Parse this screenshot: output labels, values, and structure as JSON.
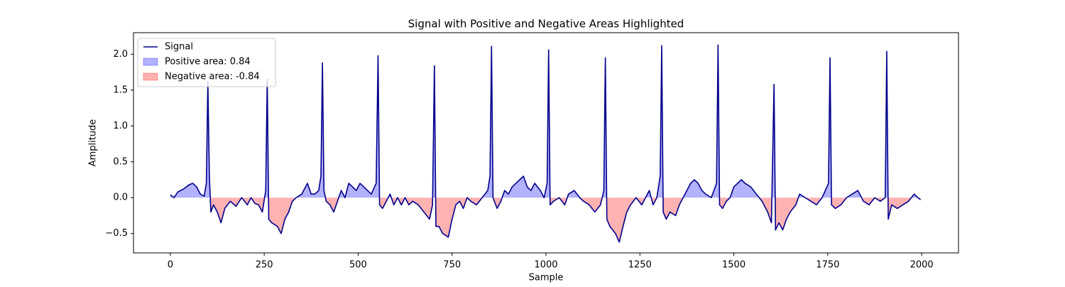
{
  "chart_data": {
    "type": "line",
    "title": "Signal with Positive and Negative Areas Highlighted",
    "x_label": "Sample",
    "y_label": "Amplitude",
    "x": [
      0,
      10,
      20,
      35,
      50,
      60,
      70,
      80,
      90,
      96,
      100,
      104,
      108,
      115,
      125,
      135,
      145,
      160,
      175,
      190,
      205,
      215,
      225,
      235,
      245,
      254,
      258,
      262,
      270,
      285,
      295,
      305,
      315,
      325,
      335,
      350,
      365,
      375,
      385,
      395,
      401,
      405,
      409,
      415,
      425,
      435,
      445,
      455,
      465,
      475,
      485,
      495,
      505,
      515,
      525,
      535,
      548,
      553,
      557,
      565,
      575,
      585,
      595,
      605,
      615,
      625,
      635,
      645,
      660,
      675,
      690,
      698,
      703,
      707,
      715,
      725,
      740,
      750,
      760,
      770,
      780,
      790,
      800,
      815,
      830,
      845,
      851,
      855,
      859,
      870,
      880,
      890,
      900,
      910,
      920,
      930,
      940,
      950,
      960,
      970,
      985,
      995,
      1003,
      1007,
      1011,
      1020,
      1035,
      1050,
      1060,
      1075,
      1090,
      1100,
      1115,
      1130,
      1145,
      1154,
      1158,
      1162,
      1170,
      1185,
      1195,
      1205,
      1215,
      1225,
      1240,
      1255,
      1265,
      1275,
      1285,
      1295,
      1304,
      1308,
      1312,
      1320,
      1330,
      1345,
      1355,
      1365,
      1375,
      1385,
      1395,
      1405,
      1415,
      1425,
      1440,
      1454,
      1458,
      1462,
      1470,
      1480,
      1490,
      1500,
      1510,
      1520,
      1530,
      1545,
      1560,
      1575,
      1590,
      1600,
      1607,
      1611,
      1620,
      1630,
      1640,
      1650,
      1665,
      1675,
      1690,
      1705,
      1720,
      1735,
      1752,
      1756,
      1760,
      1770,
      1785,
      1800,
      1815,
      1830,
      1845,
      1860,
      1875,
      1890,
      1903,
      1907,
      1911,
      1920,
      1935,
      1950,
      1965,
      1980,
      1990,
      1997
    ],
    "series": [
      {
        "name": "Signal",
        "color": "#00008b",
        "values": [
          0.04,
          0.0,
          0.08,
          0.12,
          0.18,
          0.2,
          0.15,
          0.05,
          0.02,
          0.2,
          1.62,
          0.3,
          -0.2,
          -0.1,
          -0.2,
          -0.35,
          -0.15,
          -0.05,
          -0.12,
          0.0,
          -0.1,
          0.0,
          -0.08,
          -0.1,
          -0.2,
          0.1,
          1.65,
          -0.3,
          -0.35,
          -0.4,
          -0.5,
          -0.3,
          -0.2,
          -0.05,
          0.0,
          0.05,
          0.2,
          0.05,
          0.05,
          0.1,
          0.3,
          1.88,
          0.1,
          -0.05,
          -0.1,
          -0.2,
          -0.05,
          0.1,
          0.0,
          0.2,
          0.15,
          0.1,
          0.2,
          0.15,
          0.1,
          0.05,
          0.2,
          1.98,
          -0.1,
          -0.15,
          -0.05,
          0.05,
          -0.1,
          0.0,
          -0.1,
          0.0,
          -0.1,
          -0.05,
          -0.1,
          -0.2,
          -0.3,
          -0.1,
          1.84,
          -0.4,
          -0.4,
          -0.5,
          -0.55,
          -0.3,
          -0.1,
          -0.05,
          -0.15,
          0.0,
          -0.05,
          -0.1,
          0.0,
          0.1,
          0.3,
          2.11,
          0.0,
          -0.15,
          -0.05,
          0.1,
          0.05,
          0.15,
          0.2,
          0.25,
          0.3,
          0.15,
          0.1,
          0.2,
          0.1,
          0.0,
          0.2,
          2.06,
          -0.1,
          -0.05,
          0.0,
          -0.1,
          0.05,
          0.1,
          0.0,
          -0.05,
          -0.1,
          -0.2,
          -0.1,
          0.1,
          1.95,
          -0.3,
          -0.4,
          -0.5,
          -0.62,
          -0.4,
          -0.2,
          -0.1,
          0.0,
          -0.1,
          0.0,
          0.1,
          -0.1,
          0.0,
          0.3,
          2.12,
          -0.2,
          -0.3,
          -0.2,
          -0.25,
          -0.1,
          0.0,
          0.1,
          0.2,
          0.25,
          0.2,
          0.1,
          0.05,
          0.0,
          0.2,
          2.13,
          -0.1,
          -0.15,
          -0.05,
          0.0,
          0.15,
          0.2,
          0.25,
          0.2,
          0.15,
          0.05,
          -0.05,
          -0.2,
          -0.35,
          1.58,
          -0.45,
          -0.35,
          -0.45,
          -0.3,
          -0.2,
          -0.1,
          0.05,
          0.0,
          -0.05,
          -0.1,
          0.0,
          0.2,
          1.95,
          -0.1,
          -0.15,
          -0.1,
          0.0,
          0.05,
          0.1,
          -0.05,
          -0.1,
          0.0,
          -0.05,
          0.0,
          2.04,
          -0.3,
          -0.1,
          -0.15,
          -0.1,
          -0.05,
          0.05,
          0.0,
          -0.03
        ]
      }
    ],
    "fills": [
      {
        "name": "Positive area: 0.84",
        "color": "#0000ff"
      },
      {
        "name": "Negative area: -0.84",
        "color": "#ff0000"
      }
    ],
    "xlim": [
      -98,
      2098
    ],
    "ylim": [
      -0.77,
      2.3
    ],
    "xticks": [
      0,
      250,
      500,
      750,
      1000,
      1250,
      1500,
      1750,
      2000
    ],
    "yticks": [
      {
        "value": -0.5,
        "label": "−0.5"
      },
      {
        "value": 0,
        "label": "0.0"
      },
      0.5,
      {
        "value": 1,
        "label": "1.0"
      },
      1.5,
      {
        "value": 2,
        "label": "2.0"
      }
    ],
    "legend": "upper left"
  }
}
